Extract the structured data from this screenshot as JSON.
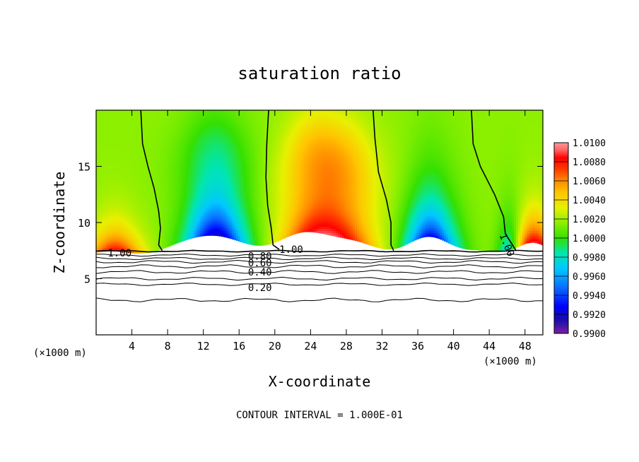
{
  "chart_data": {
    "type": "heatmap",
    "title": "saturation ratio",
    "xlabel": "X-coordinate",
    "ylabel": "Z-coordinate",
    "x_unit_left": "(×1000 m)",
    "x_unit_right": "(×1000 m)",
    "xlim": [
      0,
      50
    ],
    "ylim": [
      0,
      20
    ],
    "x_ticks": [
      4,
      8,
      12,
      16,
      20,
      24,
      28,
      32,
      36,
      40,
      44,
      48
    ],
    "y_ticks": [
      5,
      10,
      15
    ],
    "colorbar": {
      "min": 0.99,
      "max": 1.01,
      "tick_labels": [
        "1.0100",
        "1.0080",
        "1.0060",
        "1.0040",
        "1.0020",
        "1.0000",
        "0.9980",
        "0.9960",
        "0.9940",
        "0.9920",
        "0.9900"
      ],
      "colors": [
        "#7b1fa2",
        "#1a0dab",
        "#0000ff",
        "#0a6cff",
        "#00c8ff",
        "#00e6b0",
        "#35e000",
        "#8cf000",
        "#e8f000",
        "#ffc400",
        "#ff8a00",
        "#ff3b00",
        "#ff0000",
        "#ff6060",
        "#ff9a9a"
      ]
    },
    "contour_labels": [
      {
        "text": "1.00",
        "x": 1.3,
        "z": 7.3
      },
      {
        "text": "0.80",
        "x": 17.0,
        "z": 7.0
      },
      {
        "text": "0.60",
        "x": 17.0,
        "z": 6.4
      },
      {
        "text": "0.40",
        "x": 17.0,
        "z": 5.6
      },
      {
        "text": "0.20",
        "x": 17.0,
        "z": 4.2
      },
      {
        "text": "1.00",
        "x": 20.5,
        "z": 7.6
      },
      {
        "text": "1.00",
        "x": 45.5,
        "z": 9.0
      }
    ],
    "footer": "CONTOUR INTERVAL = 1.000E-01"
  }
}
